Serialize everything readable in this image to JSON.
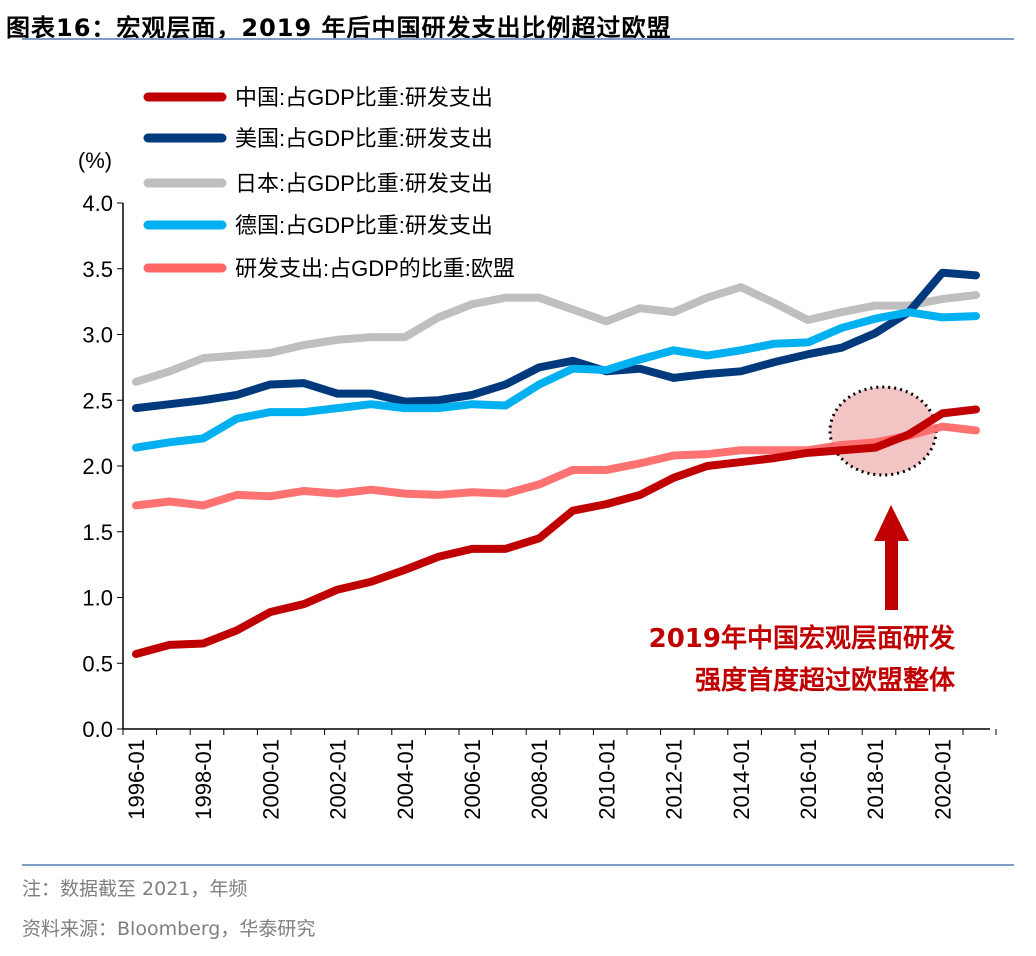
{
  "title": "图表16：宏观层面，2019 年后中国研发支出比例超过欧盟",
  "notes": [
    "注：数据截至 2021，年频",
    "资料来源：Bloomberg，华泰研究"
  ],
  "chart_data": {
    "type": "line",
    "ylabel": "(%)",
    "ylim": [
      0,
      4
    ],
    "yticks": [
      "0.0",
      "0.5",
      "1.0",
      "1.5",
      "2.0",
      "2.5",
      "3.0",
      "3.5",
      "4.0"
    ],
    "x": [
      "1996",
      "1997",
      "1998",
      "1999",
      "2000",
      "2001",
      "2002",
      "2003",
      "2004",
      "2005",
      "2006",
      "2007",
      "2008",
      "2009",
      "2010",
      "2011",
      "2012",
      "2013",
      "2014",
      "2015",
      "2016",
      "2017",
      "2018",
      "2019",
      "2020",
      "2021"
    ],
    "xticklabels": [
      "1996-01",
      "1998-01",
      "2000-01",
      "2002-01",
      "2004-01",
      "2006-01",
      "2008-01",
      "2010-01",
      "2012-01",
      "2014-01",
      "2016-01",
      "2018-01",
      "2020-01"
    ],
    "legend": "top-left",
    "grid": false,
    "series": [
      {
        "name": "中国:占GDP比重:研发支出",
        "color": "#c00000",
        "values": [
          0.57,
          0.64,
          0.65,
          0.75,
          0.89,
          0.95,
          1.06,
          1.12,
          1.21,
          1.31,
          1.37,
          1.37,
          1.45,
          1.66,
          1.71,
          1.78,
          1.91,
          2.0,
          2.03,
          2.06,
          2.1,
          2.12,
          2.14,
          2.24,
          2.4,
          2.43
        ]
      },
      {
        "name": "美国:占GDP比重:研发支出",
        "color": "#003a7d",
        "values": [
          2.44,
          2.47,
          2.5,
          2.54,
          2.62,
          2.63,
          2.55,
          2.55,
          2.49,
          2.5,
          2.54,
          2.62,
          2.75,
          2.8,
          2.72,
          2.74,
          2.67,
          2.7,
          2.72,
          2.79,
          2.85,
          2.9,
          3.01,
          3.17,
          3.47,
          3.45
        ]
      },
      {
        "name": "日本:占GDP比重:研发支出",
        "color": "#bfbfbf",
        "values": [
          2.64,
          2.72,
          2.82,
          2.84,
          2.86,
          2.92,
          2.96,
          2.98,
          2.98,
          3.13,
          3.23,
          3.28,
          3.28,
          3.19,
          3.1,
          3.2,
          3.17,
          3.28,
          3.36,
          3.24,
          3.11,
          3.17,
          3.22,
          3.22,
          3.27,
          3.3
        ]
      },
      {
        "name": "德国:占GDP比重:研发支出",
        "color": "#00b0f0",
        "values": [
          2.14,
          2.18,
          2.21,
          2.36,
          2.41,
          2.41,
          2.44,
          2.47,
          2.44,
          2.44,
          2.47,
          2.46,
          2.62,
          2.74,
          2.73,
          2.81,
          2.88,
          2.84,
          2.88,
          2.93,
          2.94,
          3.05,
          3.12,
          3.17,
          3.13,
          3.14
        ]
      },
      {
        "name": "研发支出:占GDP的比重:欧盟",
        "color": "#ff6666",
        "values": [
          1.7,
          1.73,
          1.7,
          1.78,
          1.77,
          1.81,
          1.79,
          1.82,
          1.79,
          1.78,
          1.8,
          1.79,
          1.86,
          1.97,
          1.97,
          2.02,
          2.08,
          2.09,
          2.12,
          2.12,
          2.12,
          2.16,
          2.18,
          2.23,
          2.3,
          2.27
        ]
      }
    ],
    "annotations": [
      "2019年中国宏观层面研发",
      "强度首度超过欧盟整体"
    ],
    "annotation_color": "#c00000"
  }
}
